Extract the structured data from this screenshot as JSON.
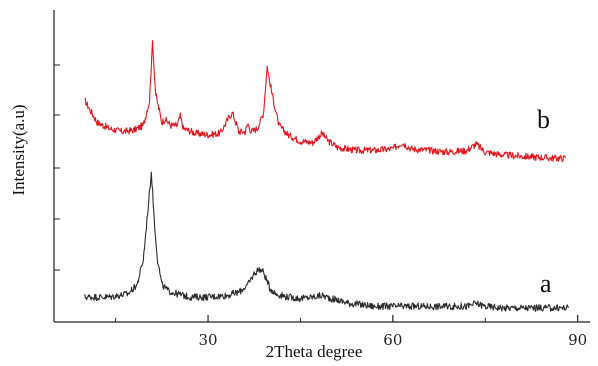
{
  "chart_data": {
    "type": "line",
    "title": "",
    "xlabel": "2Theta degree",
    "ylabel": "Intensity(a.u)",
    "xlim": [
      5,
      92
    ],
    "ylim": [
      0,
      100
    ],
    "x_ticks": [
      30,
      60,
      90
    ],
    "y_ticks": "unlabeled",
    "grid": false,
    "legend": "none",
    "series": [
      {
        "name": "b",
        "color": "#e8141a",
        "x": [
          10,
          12,
          14,
          16,
          18,
          19.5,
          20.5,
          21,
          21.5,
          22.5,
          23,
          24,
          25,
          25.5,
          26,
          28,
          30,
          32,
          33.5,
          34,
          35,
          36,
          36.5,
          37,
          38,
          39,
          39.6,
          40.3,
          41.5,
          43,
          45,
          47,
          48.5,
          49.5,
          51,
          54,
          57,
          60,
          61.5,
          63,
          66,
          69,
          72,
          73.5,
          75,
          78,
          82,
          86,
          88
        ],
        "values": [
          71,
          64,
          62,
          61,
          61.5,
          63,
          71,
          90,
          73,
          64,
          65,
          63,
          63,
          66,
          62,
          60.5,
          60,
          60.5,
          66,
          67,
          61,
          61,
          63.5,
          61,
          62,
          67,
          82,
          74,
          63,
          60,
          58,
          57.5,
          60.5,
          58,
          56,
          55,
          55,
          55.5,
          57.5,
          55.5,
          55,
          54.5,
          55,
          57,
          54.5,
          53.5,
          53,
          52.5,
          52.5
        ]
      },
      {
        "name": "a",
        "color": "#2b2b2b",
        "x": [
          10,
          14,
          17,
          18.5,
          19.5,
          20.2,
          20.8,
          21.3,
          21.8,
          22.5,
          23.5,
          25,
          27,
          30,
          33,
          35,
          36.5,
          37.5,
          38.3,
          39,
          40,
          41,
          43,
          45,
          47,
          48.5,
          50,
          53,
          57,
          61,
          65,
          69,
          72,
          73.5,
          75,
          78,
          82,
          86,
          88.5
        ],
        "values": [
          8,
          8,
          9,
          12,
          20,
          35,
          48,
          32,
          20,
          12,
          10,
          9,
          8,
          8,
          8.5,
          9.5,
          12,
          15.5,
          17,
          16,
          11,
          9,
          8,
          7.5,
          8,
          8.5,
          7.5,
          6,
          5,
          5,
          5,
          5,
          5,
          6,
          5,
          4.5,
          4.5,
          4.5,
          4.5
        ]
      }
    ],
    "annotations": [
      "b",
      "a"
    ]
  }
}
